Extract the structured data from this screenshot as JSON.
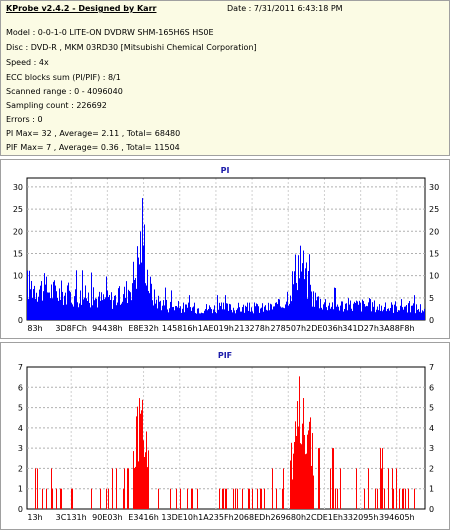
{
  "header": {
    "title": "KProbe v2.4.2 - Designed by Karr",
    "date": "Date : 7/31/2011 6:43:18 PM",
    "lines": [
      "Model : 0-0-1-0 LITE-ON DVDRW SHM-165H6S HS0E",
      "Disc : DVD-R , MKM 03RD30  [Mitsubishi Chemical Corporation]",
      "Speed : 4x",
      "ECC blocks sum (PI/PIF) : 8/1",
      "Scanned range : 0 - 4096040",
      "Sampling count : 226692",
      "Errors : 0",
      "PI Max= 32 , Average= 2.11 , Total= 68480",
      "PIF Max= 7 , Average= 0.36 , Total= 11504"
    ]
  },
  "chart_data": [
    {
      "type": "bar",
      "title": "PI",
      "color": "#0000ff",
      "ylim": [
        0,
        32
      ],
      "yticks": [
        0,
        5,
        10,
        15,
        20,
        25,
        30
      ],
      "xticks": [
        "83h",
        "3D8FCh",
        "94438h",
        "E8E32h",
        "145816h",
        "1AE019h",
        "213278h",
        "278507h",
        "2DE036h",
        "341D27h",
        "3A88F8h"
      ],
      "grid": true,
      "envelope": [
        [
          0,
          12
        ],
        [
          0.03,
          11
        ],
        [
          0.06,
          10
        ],
        [
          0.09,
          9
        ],
        [
          0.12,
          8
        ],
        [
          0.15,
          8
        ],
        [
          0.18,
          7
        ],
        [
          0.21,
          7
        ],
        [
          0.24,
          8
        ],
        [
          0.26,
          12
        ],
        [
          0.275,
          18
        ],
        [
          0.285,
          26
        ],
        [
          0.29,
          32
        ],
        [
          0.295,
          24
        ],
        [
          0.305,
          12
        ],
        [
          0.32,
          7
        ],
        [
          0.35,
          5
        ],
        [
          0.4,
          4
        ],
        [
          0.45,
          4
        ],
        [
          0.5,
          4
        ],
        [
          0.55,
          4
        ],
        [
          0.6,
          4
        ],
        [
          0.64,
          5
        ],
        [
          0.66,
          10
        ],
        [
          0.675,
          17
        ],
        [
          0.685,
          22
        ],
        [
          0.69,
          19
        ],
        [
          0.7,
          14
        ],
        [
          0.715,
          8
        ],
        [
          0.74,
          6
        ],
        [
          0.78,
          5
        ],
        [
          0.82,
          5
        ],
        [
          0.86,
          5
        ],
        [
          0.9,
          4
        ],
        [
          0.94,
          5
        ],
        [
          0.97,
          4
        ],
        [
          1.0,
          4
        ]
      ]
    },
    {
      "type": "bar",
      "title": "PIF",
      "color": "#ff0000",
      "ylim": [
        0,
        7
      ],
      "yticks": [
        0,
        1,
        2,
        3,
        4,
        5,
        6,
        7
      ],
      "xticks": [
        "13h",
        "3C131h",
        "90E03h",
        "E3416h",
        "13DE10h",
        "1A235Fh",
        "2068EDh",
        "269680h",
        "2CDE1Eh",
        "332095h",
        "394605h"
      ],
      "grid": true,
      "envelope": [
        [
          0,
          1
        ],
        [
          0.05,
          2
        ],
        [
          0.1,
          1
        ],
        [
          0.15,
          1
        ],
        [
          0.2,
          1
        ],
        [
          0.24,
          2
        ],
        [
          0.26,
          2
        ],
        [
          0.27,
          4
        ],
        [
          0.28,
          6
        ],
        [
          0.285,
          7
        ],
        [
          0.29,
          6
        ],
        [
          0.3,
          4
        ],
        [
          0.31,
          2
        ],
        [
          0.33,
          1
        ],
        [
          0.4,
          1
        ],
        [
          0.5,
          1
        ],
        [
          0.6,
          1
        ],
        [
          0.65,
          2
        ],
        [
          0.67,
          4
        ],
        [
          0.68,
          6
        ],
        [
          0.685,
          7
        ],
        [
          0.69,
          7
        ],
        [
          0.7,
          6
        ],
        [
          0.71,
          5
        ],
        [
          0.72,
          3
        ],
        [
          0.74,
          2
        ],
        [
          0.8,
          2
        ],
        [
          0.85,
          2
        ],
        [
          0.9,
          2
        ],
        [
          0.95,
          1
        ],
        [
          1.0,
          1
        ]
      ]
    }
  ]
}
